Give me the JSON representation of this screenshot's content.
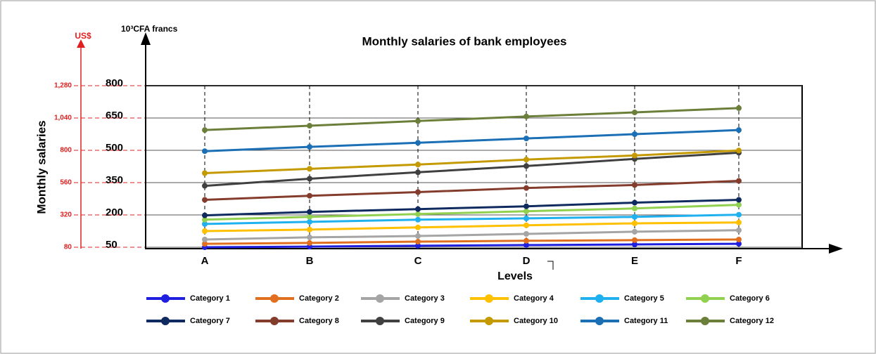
{
  "chart_data": {
    "type": "line",
    "title": "Monthly salaries of bank employees",
    "y_label": "Monthly salaries",
    "y_unit": "10³CFA francs",
    "y2_unit": "US$",
    "x_label": "Levels",
    "categories": [
      "A",
      "B",
      "C",
      "D",
      "E",
      "F"
    ],
    "ylim": [
      50,
      800
    ],
    "yticks": [
      50,
      200,
      350,
      500,
      650,
      800
    ],
    "y2lim": [
      80,
      1280
    ],
    "y2ticks": [
      80,
      320,
      560,
      800,
      {
        "value": 1040,
        "label": "1,040"
      },
      {
        "value": 1280,
        "label": "1,280"
      }
    ],
    "grid": true,
    "series": [
      {
        "name": "Category 1",
        "color": "#1f1fe0",
        "values": [
          50,
          53,
          57,
          60,
          63,
          66
        ]
      },
      {
        "name": "Category 2",
        "color": "#e07020",
        "values": [
          66,
          70,
          76,
          80,
          83,
          86
        ]
      },
      {
        "name": "Category 3",
        "color": "#a5a5a5",
        "values": [
          86,
          96,
          102,
          112,
          122,
          129
        ]
      },
      {
        "name": "Category 4",
        "color": "#ffc000",
        "values": [
          125,
          132,
          142,
          152,
          161,
          165
        ]
      },
      {
        "name": "Category 5",
        "color": "#1fb0f0",
        "values": [
          158,
          168,
          178,
          184,
          191,
          201
        ]
      },
      {
        "name": "Category 6",
        "color": "#92d050",
        "values": [
          178,
          191,
          204,
          217,
          230,
          247
        ]
      },
      {
        "name": "Category 7",
        "color": "#0f2a5e",
        "values": [
          198,
          214,
          227,
          240,
          257,
          270
        ]
      },
      {
        "name": "Category 8",
        "color": "#843c2c",
        "values": [
          270,
          289,
          306,
          325,
          339,
          358
        ]
      },
      {
        "name": "Category 9",
        "color": "#404040",
        "values": [
          335,
          368,
          398,
          427,
          460,
          489
        ]
      },
      {
        "name": "Category 10",
        "color": "#c49a00",
        "values": [
          394,
          414,
          434,
          457,
          476,
          499
        ]
      },
      {
        "name": "Category 11",
        "color": "#1a6fb5",
        "values": [
          496,
          516,
          535,
          555,
          575,
          594
        ]
      },
      {
        "name": "Category 12",
        "color": "#6b7f3a",
        "values": [
          594,
          614,
          636,
          657,
          676,
          696
        ]
      }
    ]
  }
}
